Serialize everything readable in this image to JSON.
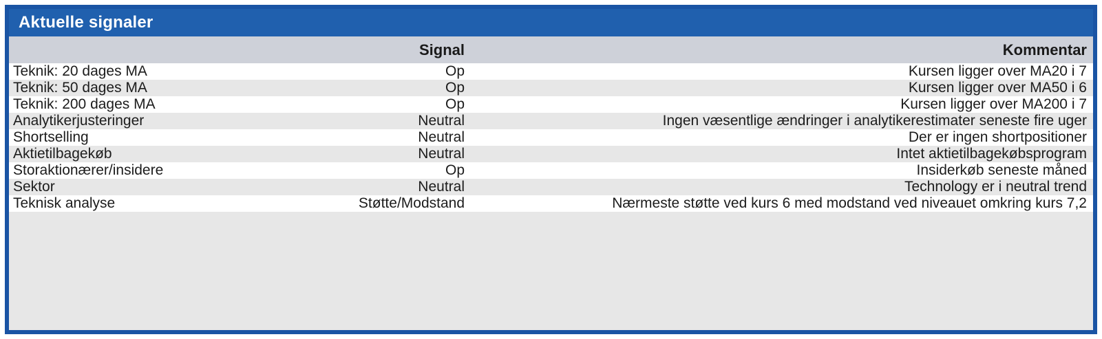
{
  "title": "Aktuelle signaler",
  "colors": {
    "frame_border_blue": "#1A54A4",
    "title_bar_blue": "#2060AE",
    "title_text": "#FFFFFF",
    "header_row_gray": "#CED1D9",
    "zebra_row_gray": "#E7E7E7",
    "row_white": "#FFFFFF",
    "text_dark": "#1C1C1C"
  },
  "table": {
    "header": {
      "name": "",
      "signal": "Signal",
      "kommentar": "Kommentar"
    },
    "rows": [
      {
        "name": "Teknik: 20 dages MA",
        "signal": "Op",
        "kommentar": "Kursen ligger over MA20 i 7"
      },
      {
        "name": "Teknik: 50 dages MA",
        "signal": "Op",
        "kommentar": "Kursen ligger over MA50 i 6"
      },
      {
        "name": "Teknik: 200 dages MA",
        "signal": "Op",
        "kommentar": "Kursen ligger over MA200 i 7"
      },
      {
        "name": "Analytikerjusteringer",
        "signal": "Neutral",
        "kommentar": "Ingen væsentlige ændringer i analytikerestimater seneste fire uger"
      },
      {
        "name": "Shortselling",
        "signal": "Neutral",
        "kommentar": "Der er ingen shortpositioner"
      },
      {
        "name": "Aktietilbagekøb",
        "signal": "Neutral",
        "kommentar": "Intet aktietilbagekøbsprogram"
      },
      {
        "name": "Storaktionærer/insidere",
        "signal": "Op",
        "kommentar": "Insiderkøb seneste måned"
      },
      {
        "name": "Sektor",
        "signal": "Neutral",
        "kommentar": "Technology er i neutral trend"
      },
      {
        "name": "Teknisk analyse",
        "signal": "Støtte/Modstand",
        "kommentar": "Nærmeste støtte ved kurs 6 med modstand ved niveauet omkring kurs 7,2"
      }
    ]
  }
}
